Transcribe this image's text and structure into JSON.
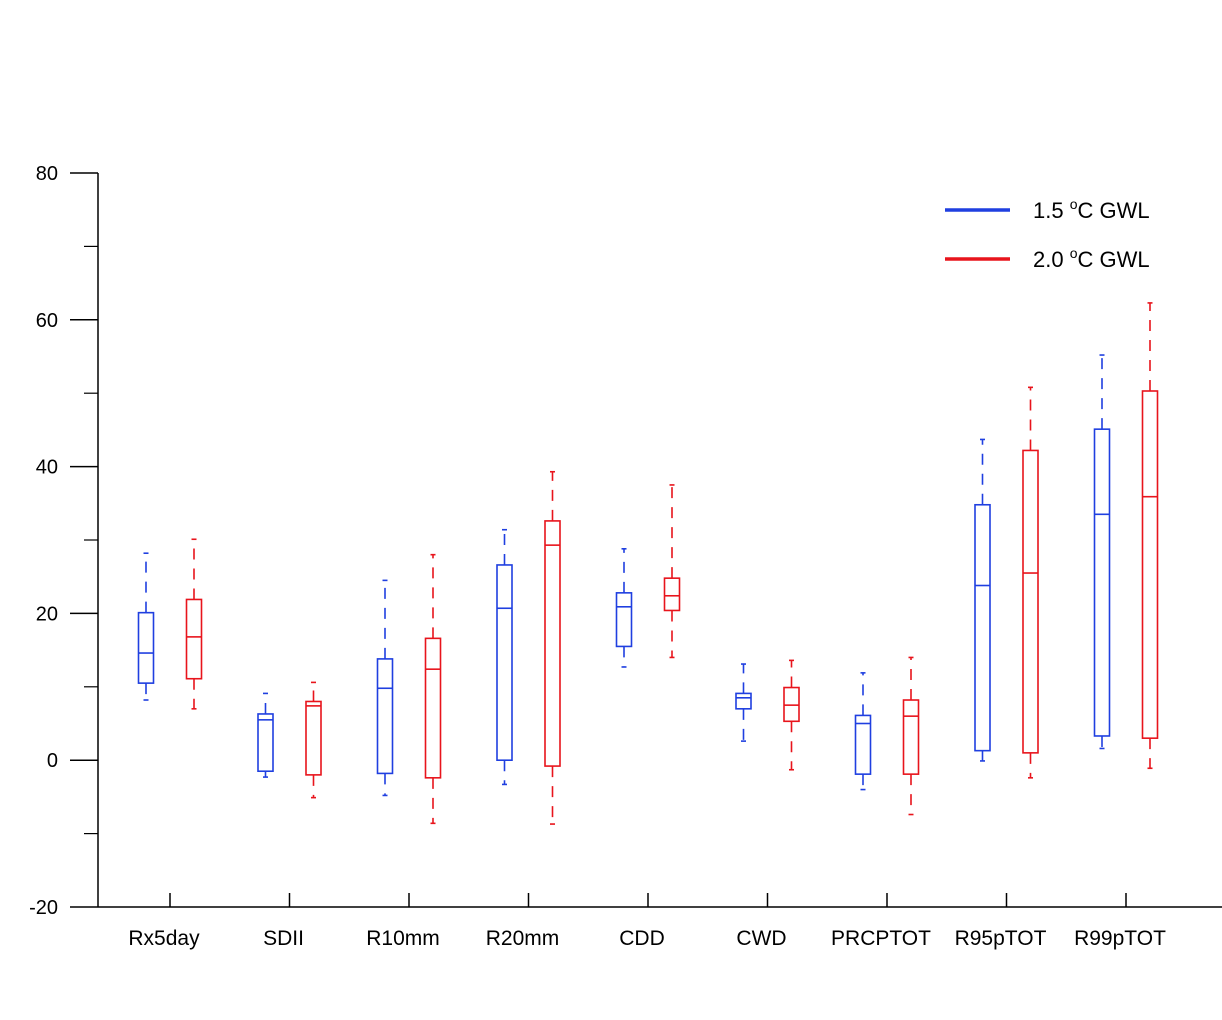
{
  "chart_data": {
    "type": "boxplot",
    "title": "",
    "xlabel": "",
    "ylabel": "",
    "ylim": [
      -20,
      80
    ],
    "y_ticks": [
      "-20",
      "0",
      "20",
      "40",
      "60",
      "80"
    ],
    "grid": false,
    "legend_position": "top-right",
    "categories": [
      "Rx5day",
      "SDII",
      "R10mm",
      "R20mm",
      "CDD",
      "CWD",
      "PRCPTOT",
      "R95pTOT",
      "R99pTOT"
    ],
    "series": [
      {
        "name_prefix": "1.5 ",
        "name_sup": "o",
        "name_suffix": "C GWL",
        "color": "#1f3fe0",
        "whisker_low": [
          8.2,
          -2.3,
          -4.8,
          -3.3,
          12.7,
          2.6,
          -4.0,
          -0.1,
          1.6
        ],
        "q1": [
          10.5,
          -1.5,
          -1.8,
          0.0,
          15.5,
          7.0,
          -1.9,
          1.3,
          3.3
        ],
        "median": [
          14.6,
          5.5,
          9.8,
          20.7,
          20.9,
          8.5,
          5.0,
          23.8,
          33.5
        ],
        "q3": [
          20.1,
          6.3,
          13.8,
          26.6,
          22.8,
          9.1,
          6.1,
          34.8,
          45.1
        ],
        "whisker_high": [
          28.2,
          9.1,
          24.5,
          31.4,
          28.8,
          13.1,
          11.9,
          43.7,
          55.2
        ]
      },
      {
        "name_prefix": "2.0 ",
        "name_sup": "o",
        "name_suffix": "C GWL",
        "color": "#e8141c",
        "whisker_low": [
          7.0,
          -5.1,
          -8.6,
          -8.7,
          14.0,
          -1.3,
          -7.4,
          -2.4,
          -1.1
        ],
        "q1": [
          11.1,
          -2.0,
          -2.4,
          -0.8,
          20.4,
          5.3,
          -1.9,
          1.0,
          3.0
        ],
        "median": [
          16.8,
          7.4,
          12.4,
          29.3,
          22.4,
          7.5,
          6.0,
          25.5,
          35.9
        ],
        "q3": [
          21.9,
          8.0,
          16.6,
          32.6,
          24.8,
          9.9,
          8.2,
          42.2,
          50.3
        ],
        "whisker_high": [
          30.1,
          10.6,
          28.0,
          39.3,
          37.5,
          13.6,
          14.0,
          50.8,
          62.3
        ]
      }
    ]
  }
}
